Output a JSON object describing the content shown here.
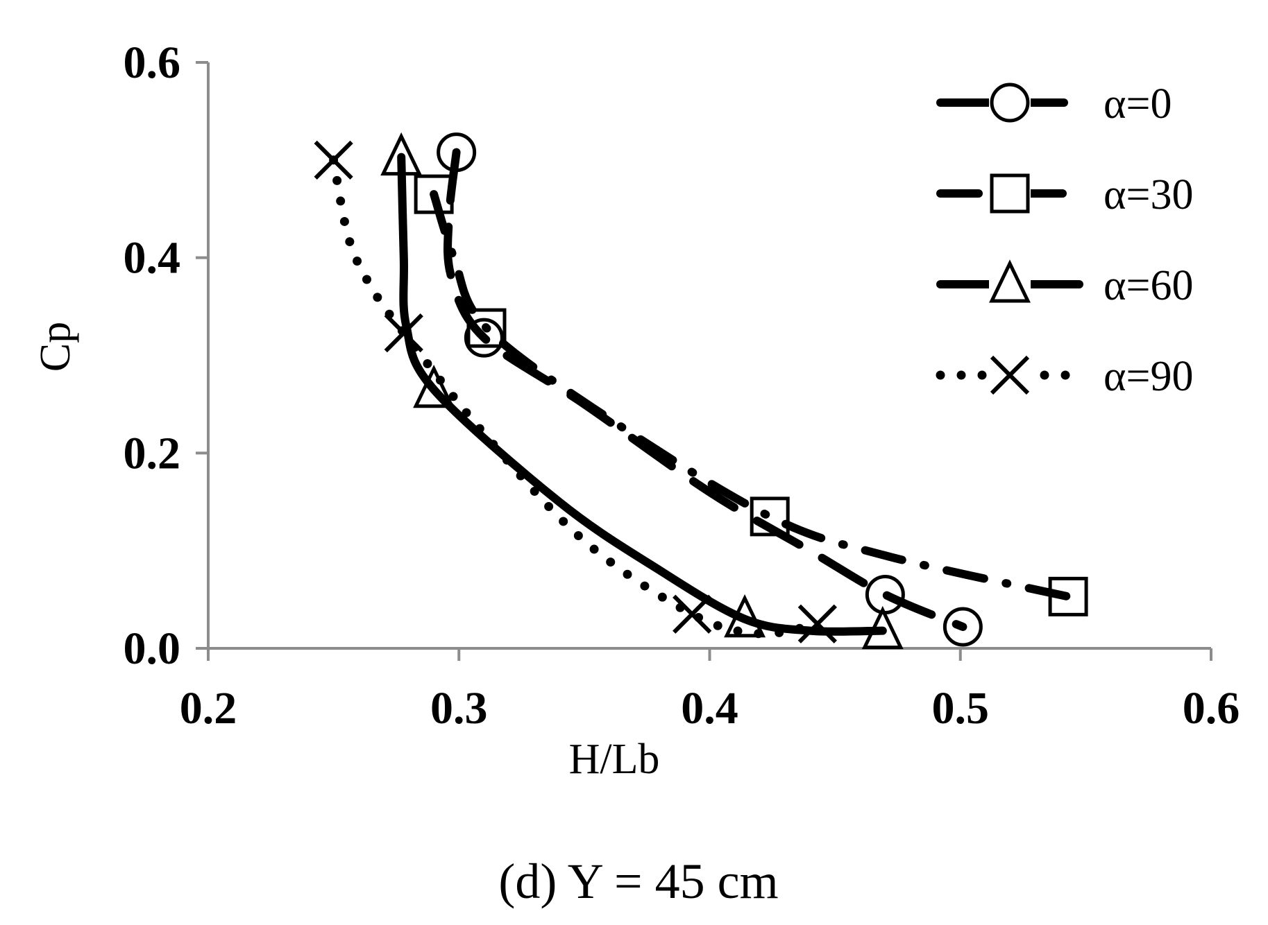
{
  "chart_data": {
    "type": "scatter",
    "xlabel": "H/Lb",
    "ylabel": "Cp",
    "caption": "(d) Y = 45 cm",
    "xlim": [
      0.2,
      0.6
    ],
    "ylim": [
      0.0,
      0.6
    ],
    "xticks": [
      "0.2",
      "0.3",
      "0.4",
      "0.5",
      "0.6"
    ],
    "yticks": [
      "0.0",
      "0.2",
      "0.4",
      "0.6"
    ],
    "legend_position": "top-right",
    "series": [
      {
        "name": "α=0",
        "marker": "circle",
        "line_style": "long-dash",
        "points": [
          [
            0.299,
            0.508
          ],
          [
            0.31,
            0.318
          ],
          [
            0.47,
            0.055
          ],
          [
            0.501,
            0.022
          ]
        ],
        "curve": [
          [
            0.299,
            0.508
          ],
          [
            0.296,
            0.44
          ],
          [
            0.297,
            0.38
          ],
          [
            0.31,
            0.318
          ],
          [
            0.35,
            0.25
          ],
          [
            0.4,
            0.16
          ],
          [
            0.44,
            0.1
          ],
          [
            0.47,
            0.055
          ],
          [
            0.501,
            0.022
          ]
        ]
      },
      {
        "name": "α=30",
        "marker": "square",
        "line_style": "dash-dot",
        "points": [
          [
            0.29,
            0.465
          ],
          [
            0.311,
            0.328
          ],
          [
            0.424,
            0.135
          ],
          [
            0.543,
            0.053
          ]
        ],
        "curve": [
          [
            0.29,
            0.465
          ],
          [
            0.298,
            0.4
          ],
          [
            0.311,
            0.328
          ],
          [
            0.36,
            0.235
          ],
          [
            0.424,
            0.135
          ],
          [
            0.47,
            0.095
          ],
          [
            0.543,
            0.053
          ]
        ]
      },
      {
        "name": "α=60",
        "marker": "triangle",
        "line_style": "solid",
        "points": [
          [
            0.277,
            0.503
          ],
          [
            0.29,
            0.265
          ],
          [
            0.414,
            0.03
          ],
          [
            0.469,
            0.018
          ]
        ],
        "curve": [
          [
            0.277,
            0.503
          ],
          [
            0.278,
            0.4
          ],
          [
            0.279,
            0.33
          ],
          [
            0.29,
            0.265
          ],
          [
            0.34,
            0.15
          ],
          [
            0.38,
            0.08
          ],
          [
            0.414,
            0.03
          ],
          [
            0.44,
            0.018
          ],
          [
            0.469,
            0.018
          ]
        ]
      },
      {
        "name": "α=90",
        "marker": "x",
        "line_style": "dotted",
        "points": [
          [
            0.25,
            0.5
          ],
          [
            0.278,
            0.323
          ],
          [
            0.393,
            0.035
          ],
          [
            0.443,
            0.025
          ]
        ],
        "curve": [
          [
            0.25,
            0.5
          ],
          [
            0.256,
            0.42
          ],
          [
            0.265,
            0.37
          ],
          [
            0.278,
            0.323
          ],
          [
            0.31,
            0.22
          ],
          [
            0.35,
            0.11
          ],
          [
            0.393,
            0.035
          ],
          [
            0.42,
            0.015
          ],
          [
            0.443,
            0.025
          ]
        ]
      }
    ]
  },
  "colors": {
    "axis": "#8c8c8c",
    "ink": "#000000",
    "background": "#ffffff"
  }
}
